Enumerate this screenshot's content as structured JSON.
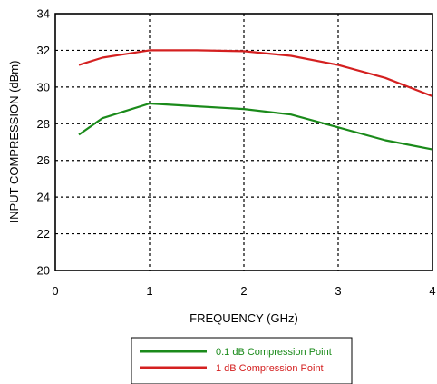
{
  "chart_data": {
    "type": "line",
    "title": "",
    "xlabel": "FREQUENCY (GHz)",
    "ylabel": "INPUT COMPRESSION (dBm)",
    "xlim": [
      0,
      4
    ],
    "ylim": [
      20,
      34
    ],
    "x_ticks": [
      "0",
      "1",
      "2",
      "3",
      "4"
    ],
    "y_ticks": [
      "20",
      "22",
      "24",
      "26",
      "28",
      "30",
      "32",
      "34"
    ],
    "grid": "dashed",
    "legend_position": "bottom-center",
    "series": [
      {
        "name": "0.1 dB Compression Point",
        "color": "#1a8a1a",
        "x": [
          0.25,
          0.5,
          1.0,
          1.5,
          2.0,
          2.5,
          3.0,
          3.5,
          4.0
        ],
        "y": [
          27.4,
          28.3,
          29.1,
          28.95,
          28.8,
          28.5,
          27.8,
          27.1,
          26.6
        ]
      },
      {
        "name": "1 dB Compression Point",
        "color": "#d42020",
        "x": [
          0.25,
          0.5,
          1.0,
          1.5,
          2.0,
          2.5,
          3.0,
          3.5,
          4.0
        ],
        "y": [
          31.2,
          31.6,
          32.0,
          32.0,
          31.95,
          31.7,
          31.2,
          30.5,
          29.5
        ]
      }
    ]
  }
}
